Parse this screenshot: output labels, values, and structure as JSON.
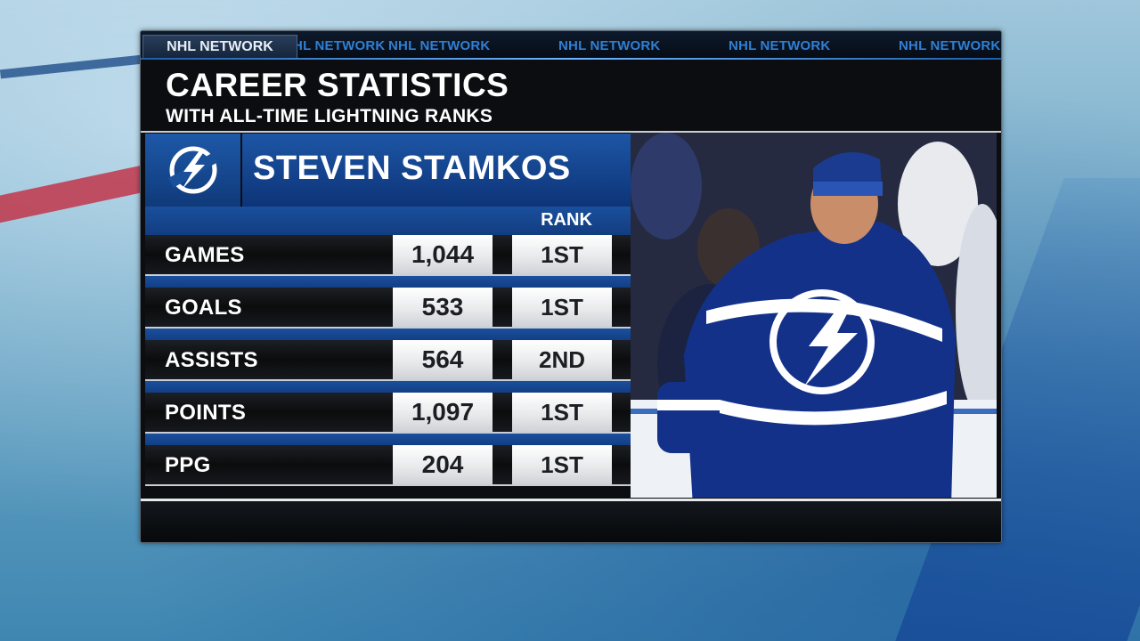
{
  "ticker": {
    "network_label": "NHL NETWORK",
    "items": [
      "NHL NETWORK",
      "NHL NETWORK",
      "NHL NETWORK",
      "NHL NETWORK",
      "NHL NETWORK"
    ]
  },
  "graphic": {
    "title": "CAREER STATISTICS",
    "subtitle": "WITH ALL-TIME LIGHTNING RANKS",
    "player_name": "STEVEN STAMKOS",
    "rank_header": "RANK",
    "team_logo_icon": "lightning-bolt-icon",
    "stats": [
      {
        "label": "GAMES",
        "value": "1,044",
        "rank": "1ST"
      },
      {
        "label": "GOALS",
        "value": "533",
        "rank": "1ST"
      },
      {
        "label": "ASSISTS",
        "value": "564",
        "rank": "2ND"
      },
      {
        "label": "POINTS",
        "value": "1,097",
        "rank": "1ST"
      },
      {
        "label": "PPG",
        "value": "204",
        "rank": "1ST"
      }
    ]
  },
  "colors": {
    "team_blue": "#1d56a5",
    "ticker_blue": "#2f80d6",
    "panel_black": "#0b0d10"
  }
}
